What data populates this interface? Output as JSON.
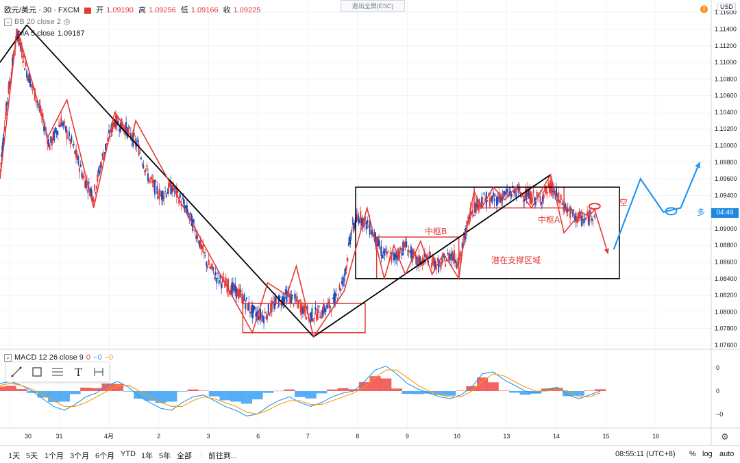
{
  "header": {
    "symbol": "欧元/美元 · 30 · FXCM",
    "open_label": "开",
    "open_value": "1.09190",
    "high_label": "高",
    "high_value": "1.09256",
    "low_label": "低",
    "low_value": "1.09166",
    "close_label": "收",
    "close_value": "1.09225",
    "bb_label": "BB 20 close 2",
    "ma_label": "MA 5 close",
    "ma_value": "1.09187",
    "exit_fullscreen": "退出全屏(ESC)",
    "currency": "USD",
    "current_price": "04:49"
  },
  "macd": {
    "label": "MACD 12 26 close 9",
    "v1": "0",
    "v2": "−0",
    "v3": "−0"
  },
  "annotations": {
    "zs_b": "中枢B",
    "zs_a": "中枢A",
    "support": "潜在支撑区域",
    "short": "空",
    "long": "多"
  },
  "bottom": {
    "ranges": [
      "1天",
      "5天",
      "1个月",
      "3个月",
      "6个月",
      "YTD",
      "1年",
      "5年",
      "全部"
    ],
    "goto": "前往到...",
    "time": "08:55:11 (UTC+8)",
    "percent": "%",
    "log": "log",
    "auto": "auto"
  },
  "colors": {
    "up": "#e53935",
    "down": "#1e4bb8",
    "zigzag": "#e53935",
    "trend": "#000000",
    "forecast": "#2196f3",
    "macd_fast": "#2196f3",
    "macd_slow": "#ff9800"
  },
  "chart_data": {
    "type": "line",
    "title": "",
    "y_ticks": [
      "1.11600",
      "1.11400",
      "1.11200",
      "1.11000",
      "1.10800",
      "1.10600",
      "1.10400",
      "1.10200",
      "1.10000",
      "1.09800",
      "1.09600",
      "1.09400",
      "1.09200",
      "1.09000",
      "1.08800",
      "1.08600",
      "1.08400",
      "1.08200",
      "1.08000",
      "1.07800",
      "1.07600"
    ],
    "y_range": [
      1.0755,
      1.1175
    ],
    "x_ticks": [
      "30",
      "31",
      "4月",
      "2",
      "3",
      "6",
      "7",
      "8",
      "9",
      "10",
      "13",
      "14",
      "15",
      "16"
    ],
    "macd_ticks": [
      "0",
      "0",
      "−0"
    ],
    "price_path": [
      {
        "x": 0,
        "y": 1.097
      },
      {
        "x": 0.2,
        "y": 1.106
      },
      {
        "x": 0.45,
        "y": 1.1135
      },
      {
        "x": 0.7,
        "y": 1.109
      },
      {
        "x": 1.0,
        "y": 1.105
      },
      {
        "x": 1.3,
        "y": 1.1
      },
      {
        "x": 1.6,
        "y": 1.103
      },
      {
        "x": 1.9,
        "y": 1.1
      },
      {
        "x": 2.2,
        "y": 1.096
      },
      {
        "x": 2.45,
        "y": 1.094
      },
      {
        "x": 2.7,
        "y": 1.099
      },
      {
        "x": 3.0,
        "y": 1.103
      },
      {
        "x": 3.3,
        "y": 1.102
      },
      {
        "x": 3.6,
        "y": 1.1
      },
      {
        "x": 3.9,
        "y": 1.096
      },
      {
        "x": 4.2,
        "y": 1.094
      },
      {
        "x": 4.5,
        "y": 1.095
      },
      {
        "x": 4.8,
        "y": 1.093
      },
      {
        "x": 5.1,
        "y": 1.09
      },
      {
        "x": 5.4,
        "y": 1.086
      },
      {
        "x": 5.7,
        "y": 1.084
      },
      {
        "x": 6.0,
        "y": 1.083
      },
      {
        "x": 6.3,
        "y": 1.082
      },
      {
        "x": 6.6,
        "y": 1.08
      },
      {
        "x": 6.9,
        "y": 1.0795
      },
      {
        "x": 7.2,
        "y": 1.081
      },
      {
        "x": 7.5,
        "y": 1.082
      },
      {
        "x": 7.8,
        "y": 1.081
      },
      {
        "x": 8.1,
        "y": 1.0795
      },
      {
        "x": 8.4,
        "y": 1.08
      },
      {
        "x": 8.7,
        "y": 1.081
      },
      {
        "x": 9.0,
        "y": 1.084
      },
      {
        "x": 9.2,
        "y": 1.09
      },
      {
        "x": 9.4,
        "y": 1.0915
      },
      {
        "x": 9.7,
        "y": 1.09
      },
      {
        "x": 10.0,
        "y": 1.087
      },
      {
        "x": 10.3,
        "y": 1.0865
      },
      {
        "x": 10.6,
        "y": 1.088
      },
      {
        "x": 10.9,
        "y": 1.086
      },
      {
        "x": 11.2,
        "y": 1.0865
      },
      {
        "x": 11.5,
        "y": 1.0855
      },
      {
        "x": 11.8,
        "y": 1.087
      },
      {
        "x": 12.0,
        "y": 1.086
      },
      {
        "x": 12.3,
        "y": 1.092
      },
      {
        "x": 12.6,
        "y": 1.0935
      },
      {
        "x": 12.9,
        "y": 1.0935
      },
      {
        "x": 13.2,
        "y": 1.094
      },
      {
        "x": 13.5,
        "y": 1.0945
      },
      {
        "x": 13.8,
        "y": 1.094
      },
      {
        "x": 14.1,
        "y": 1.0935
      },
      {
        "x": 14.4,
        "y": 1.095
      },
      {
        "x": 14.7,
        "y": 1.093
      },
      {
        "x": 15.0,
        "y": 1.0915
      },
      {
        "x": 15.3,
        "y": 1.091
      },
      {
        "x": 15.6,
        "y": 1.0922
      }
    ],
    "zigzag_red": [
      {
        "x": 0,
        "y": 1.096
      },
      {
        "x": 0.45,
        "y": 1.114
      },
      {
        "x": 1.25,
        "y": 1.101
      },
      {
        "x": 1.75,
        "y": 1.1055
      },
      {
        "x": 2.45,
        "y": 1.0925
      },
      {
        "x": 3.0,
        "y": 1.104
      },
      {
        "x": 3.45,
        "y": 1.101
      },
      {
        "x": 3.55,
        "y": 1.103
      },
      {
        "x": 6.6,
        "y": 1.0775
      },
      {
        "x": 7.0,
        "y": 1.0835
      },
      {
        "x": 7.5,
        "y": 1.082
      },
      {
        "x": 7.75,
        "y": 1.0855
      },
      {
        "x": 8.2,
        "y": 1.077
      },
      {
        "x": 9.0,
        "y": 1.0825
      },
      {
        "x": 9.6,
        "y": 1.0925
      },
      {
        "x": 10.05,
        "y": 1.084
      },
      {
        "x": 10.3,
        "y": 1.088
      },
      {
        "x": 10.6,
        "y": 1.0845
      },
      {
        "x": 11.0,
        "y": 1.0885
      },
      {
        "x": 11.3,
        "y": 1.0845
      },
      {
        "x": 11.6,
        "y": 1.087
      },
      {
        "x": 12.0,
        "y": 1.084
      },
      {
        "x": 12.1,
        "y": 1.0875
      },
      {
        "x": 12.4,
        "y": 1.0945
      },
      {
        "x": 12.6,
        "y": 1.0925
      },
      {
        "x": 12.9,
        "y": 1.095
      },
      {
        "x": 13.2,
        "y": 1.0935
      },
      {
        "x": 13.5,
        "y": 1.095
      },
      {
        "x": 13.9,
        "y": 1.0925
      },
      {
        "x": 14.4,
        "y": 1.0965
      },
      {
        "x": 14.75,
        "y": 1.0895
      },
      {
        "x": 15.2,
        "y": 1.092
      },
      {
        "x": 15.4,
        "y": 1.0915
      },
      {
        "x": 15.55,
        "y": 1.0923
      },
      {
        "x": 15.9,
        "y": 1.087
      }
    ],
    "trendlines": [
      {
        "from": {
          "x": 0,
          "y": 1.11
        },
        "to": {
          "x": 0.7,
          "y": 1.1145
        }
      },
      {
        "from": {
          "x": 0.7,
          "y": 1.1145
        },
        "to": {
          "x": 8.2,
          "y": 1.077
        }
      },
      {
        "from": {
          "x": 8.2,
          "y": 1.077
        },
        "to": {
          "x": 14.4,
          "y": 1.0965
        }
      }
    ],
    "boxes": [
      {
        "x0": 6.35,
        "x1": 9.55,
        "y0": 1.0775,
        "y1": 1.081,
        "color": "#e53935"
      },
      {
        "x0": 9.85,
        "x1": 12.0,
        "y0": 1.084,
        "y1": 1.089,
        "color": "#e53935"
      },
      {
        "x0": 12.4,
        "x1": 14.75,
        "y0": 1.0925,
        "y1": 1.095,
        "color": "#e53935"
      },
      {
        "x0": 9.3,
        "x1": 16.2,
        "y0": 1.084,
        "y1": 1.095,
        "color": "#000000"
      }
    ],
    "forecast": [
      {
        "x": 16.05,
        "y": 1.0875
      },
      {
        "x": 16.75,
        "y": 1.096
      },
      {
        "x": 17.35,
        "y": 1.092
      },
      {
        "x": 17.8,
        "y": 1.0925
      },
      {
        "x": 18.3,
        "y": 1.098
      }
    ],
    "macd_fast": [
      0.4,
      0.5,
      0.3,
      0.0,
      -0.4,
      -0.8,
      -1.0,
      -0.7,
      -0.3,
      -0.1,
      0.3,
      0.5,
      0.2,
      -0.3,
      -0.6,
      -0.9,
      -1.0,
      -0.6,
      -0.3,
      -0.2,
      -0.5,
      -0.8,
      -1.0,
      -1.3,
      -1.2,
      -0.8,
      -0.5,
      -0.3,
      -0.6,
      -0.8,
      -0.6,
      -0.3,
      -0.1,
      0.0,
      0.5,
      1.1,
      1.3,
      0.9,
      0.4,
      0.1,
      -0.1,
      -0.3,
      -0.4,
      -0.2,
      0.2,
      0.9,
      1.0,
      0.6,
      0.3,
      0.0,
      -0.1,
      0.1,
      0.2,
      -0.2,
      -0.4,
      -0.2,
      0.0
    ],
    "macd_slow": [
      0.3,
      0.4,
      0.3,
      0.1,
      -0.2,
      -0.5,
      -0.8,
      -0.8,
      -0.6,
      -0.3,
      0.0,
      0.3,
      0.3,
      0.0,
      -0.3,
      -0.6,
      -0.8,
      -0.8,
      -0.5,
      -0.3,
      -0.4,
      -0.6,
      -0.8,
      -1.1,
      -1.2,
      -1.0,
      -0.7,
      -0.5,
      -0.5,
      -0.7,
      -0.7,
      -0.5,
      -0.3,
      -0.1,
      0.2,
      0.7,
      1.1,
      1.1,
      0.7,
      0.3,
      0.0,
      -0.2,
      -0.3,
      -0.3,
      0.0,
      0.5,
      0.9,
      0.8,
      0.5,
      0.2,
      0.0,
      0.0,
      0.1,
      0.0,
      -0.3,
      -0.3,
      -0.1
    ]
  }
}
